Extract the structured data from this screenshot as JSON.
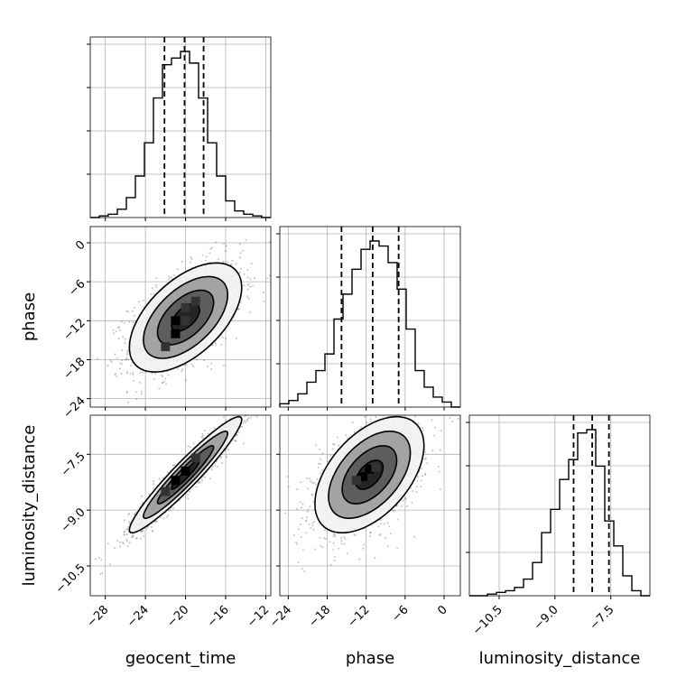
{
  "chart_data": {
    "type": "corner",
    "grid": true,
    "parameters": [
      "geocent_time",
      "phase",
      "luminosity_distance"
    ],
    "axis_labels": {
      "x": [
        "geocent_time",
        "phase",
        "luminosity_distance"
      ],
      "y_row2": "phase",
      "y_row3": "luminosity_distance"
    },
    "ranges": {
      "geocent_time": [
        -29.5,
        -11.5
      ],
      "phase": [
        -25.3,
        2.5
      ],
      "luminosity_distance": [
        -11.3,
        -6.45
      ]
    },
    "ticks": {
      "geocent_time": [
        -28,
        -24,
        -20,
        -16,
        -12
      ],
      "phase": [
        -24,
        -18,
        -12,
        -6,
        0
      ],
      "luminosity_distance": [
        -10.5,
        -9.0,
        -7.5
      ]
    },
    "tick_labels": {
      "geocent_time": [
        "−28",
        "−24",
        "−20",
        "−16",
        "−12"
      ],
      "phase": [
        "−24",
        "−18",
        "−12",
        "−6",
        "0"
      ],
      "luminosity_distance": [
        "−10.5",
        "−9.0",
        "−7.5"
      ]
    },
    "marginals": {
      "geocent_time": {
        "bin_edges": [
          -29.5,
          -28.6,
          -27.7,
          -26.8,
          -25.9,
          -25.0,
          -24.1,
          -23.2,
          -22.3,
          -21.4,
          -20.5,
          -19.6,
          -18.7,
          -17.8,
          -16.9,
          -16.0,
          -15.1,
          -14.2,
          -13.3,
          -12.4,
          -11.5
        ],
        "counts": [
          0.0,
          0.01,
          0.02,
          0.05,
          0.12,
          0.25,
          0.45,
          0.72,
          0.92,
          0.96,
          1.0,
          0.93,
          0.72,
          0.45,
          0.25,
          0.1,
          0.04,
          0.02,
          0.01,
          0.0
        ],
        "quantiles": [
          -22.1,
          -20.1,
          -18.2
        ]
      },
      "phase": {
        "bin_edges": [
          -25.3,
          -23.91,
          -22.52,
          -21.13,
          -19.74,
          -18.35,
          -16.96,
          -15.57,
          -14.18,
          -12.79,
          -11.4,
          -10.01,
          -8.62,
          -7.23,
          -5.84,
          -4.45,
          -3.06,
          -1.67,
          -0.28,
          1.11,
          2.5
        ],
        "counts": [
          0.02,
          0.04,
          0.08,
          0.15,
          0.22,
          0.32,
          0.53,
          0.68,
          0.83,
          0.95,
          1.0,
          0.97,
          0.87,
          0.71,
          0.47,
          0.22,
          0.12,
          0.06,
          0.03,
          0.0
        ],
        "quantiles": [
          -15.8,
          -11.0,
          -7.0
        ]
      },
      "luminosity_distance": {
        "bin_edges": [
          -11.3,
          -11.0575,
          -10.815,
          -10.5725,
          -10.33,
          -10.0875,
          -9.845,
          -9.6025,
          -9.36,
          -9.1175,
          -8.875,
          -8.6325,
          -8.39,
          -8.1475,
          -7.905,
          -7.6625,
          -7.42,
          -7.1775,
          -6.935,
          -6.6925,
          -6.45
        ],
        "counts": [
          0.0,
          0.0,
          0.01,
          0.02,
          0.03,
          0.05,
          0.1,
          0.2,
          0.38,
          0.52,
          0.7,
          0.82,
          0.98,
          1.0,
          0.78,
          0.45,
          0.3,
          0.12,
          0.03,
          0.0
        ],
        "quantiles": [
          -8.5,
          -8.0,
          -7.55
        ]
      }
    },
    "pairs": [
      {
        "x": "geocent_time",
        "y": "phase",
        "center": [
          -20.0,
          -11.5
        ],
        "sigma": [
          2.8,
          4.2
        ],
        "correlation": 0.55,
        "dense_cells": [
          [
            -21.0,
            -14.0
          ],
          [
            -21.0,
            -12.0
          ],
          [
            -20.0,
            -10.0
          ],
          [
            -20.0,
            -12.0
          ],
          [
            -22.0,
            -16.0
          ],
          [
            -19.0,
            -9.0
          ]
        ]
      },
      {
        "x": "geocent_time",
        "y": "luminosity_distance",
        "center": [
          -20.0,
          -8.05
        ],
        "sigma": [
          2.8,
          0.78
        ],
        "correlation": 0.95,
        "dense_cells": [
          [
            -20.0,
            -7.95
          ],
          [
            -21.0,
            -8.2
          ],
          [
            -19.0,
            -7.6
          ],
          [
            -22.0,
            -8.5
          ]
        ]
      },
      {
        "x": "phase",
        "y": "luminosity_distance",
        "center": [
          -11.5,
          -8.05
        ],
        "sigma": [
          4.2,
          0.78
        ],
        "correlation": 0.5,
        "dense_cells": [
          [
            -11.5,
            -7.9
          ],
          [
            -12.5,
            -8.1
          ],
          [
            -13.5,
            -8.2
          ],
          [
            -10.5,
            -7.85
          ]
        ]
      }
    ],
    "contour_levels_sigma": [
      0.5,
      1.0,
      1.5,
      2.0
    ],
    "n_samples": 5000
  }
}
